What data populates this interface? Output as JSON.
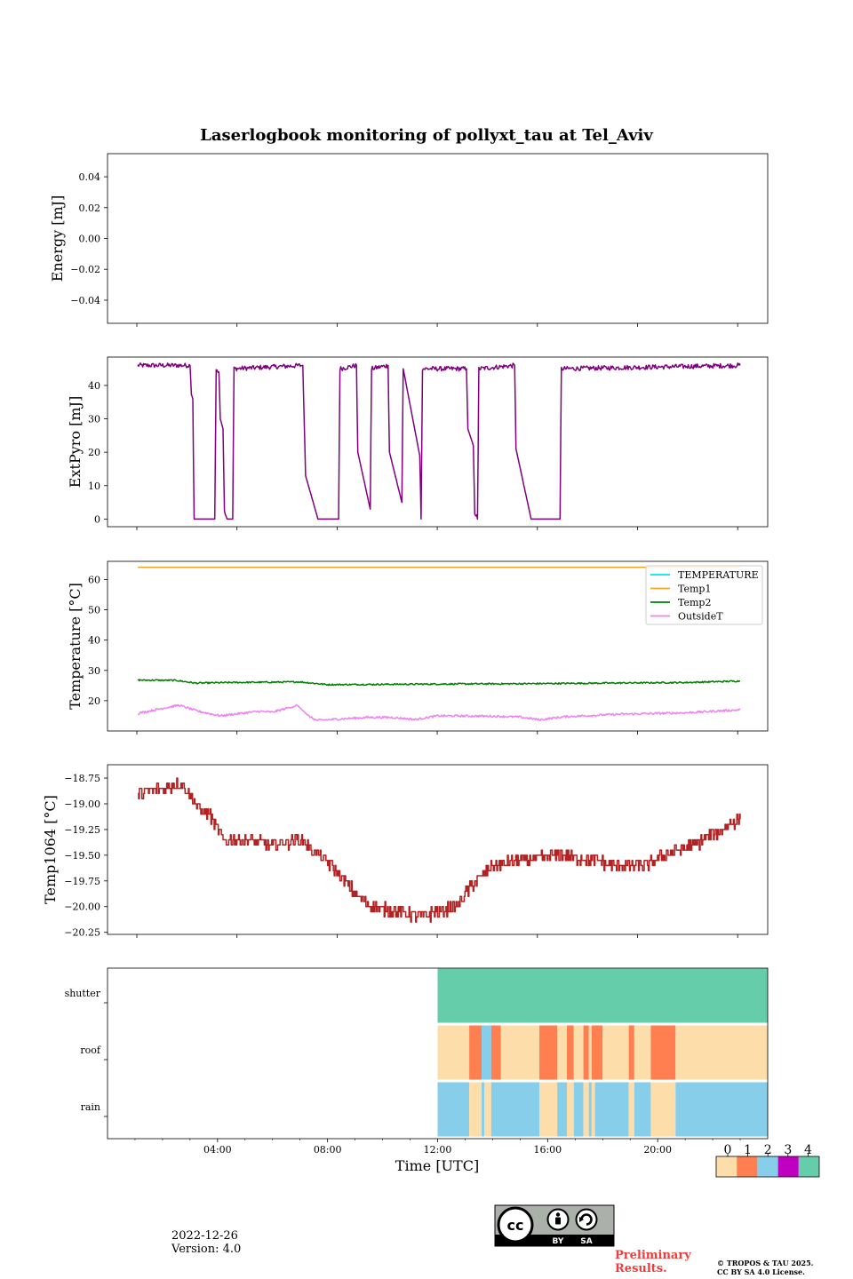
{
  "chart_data": {
    "title": "Laserlogbook monitoring of pollyxt_tau at Tel_Aviv",
    "x_axis": {
      "label": "Time [UTC]",
      "range_hours": [
        0,
        24
      ],
      "ticks": [
        {
          "hour": 4,
          "label": "04:00"
        },
        {
          "hour": 8,
          "label": "08:00"
        },
        {
          "hour": 12,
          "label": "12:00"
        },
        {
          "hour": 16,
          "label": "16:00"
        },
        {
          "hour": 20,
          "label": "20:00"
        }
      ]
    },
    "panels": [
      {
        "id": "energy",
        "type": "line",
        "ylabel": "Energy [mJ]",
        "ylim": [
          -0.055,
          0.055
        ],
        "yticks": [
          {
            "v": 0.04,
            "label": "0.04"
          },
          {
            "v": 0.02,
            "label": "0.02"
          },
          {
            "v": 0.0,
            "label": "0.00"
          },
          {
            "v": -0.02,
            "label": "−0.02"
          },
          {
            "v": -0.04,
            "label": "−0.04"
          }
        ],
        "series": []
      },
      {
        "id": "extpyro",
        "type": "line",
        "ylabel": "ExtPyro [mJ]",
        "ylim": [
          -2.3,
          48.5
        ],
        "yticks": [
          {
            "v": 0,
            "label": "0"
          },
          {
            "v": 10,
            "label": "10"
          },
          {
            "v": 20,
            "label": "20"
          },
          {
            "v": 30,
            "label": "30"
          },
          {
            "v": 40,
            "label": "40"
          }
        ],
        "series": [
          {
            "color": "#800080",
            "noise": 0.7,
            "points": [
              [
                1.1,
                46
              ],
              [
                3.0,
                46
              ],
              [
                3.05,
                38
              ],
              [
                3.1,
                36
              ],
              [
                3.15,
                0
              ],
              [
                3.9,
                0
              ],
              [
                3.95,
                45
              ],
              [
                4.05,
                44
              ],
              [
                4.1,
                30
              ],
              [
                4.2,
                27
              ],
              [
                4.25,
                2
              ],
              [
                4.35,
                0
              ],
              [
                4.55,
                0
              ],
              [
                4.6,
                45
              ],
              [
                7.1,
                46
              ],
              [
                7.2,
                13
              ],
              [
                7.65,
                0
              ],
              [
                8.4,
                0
              ],
              [
                8.45,
                45
              ],
              [
                9.05,
                46
              ],
              [
                9.1,
                20
              ],
              [
                9.55,
                3
              ],
              [
                9.6,
                45
              ],
              [
                10.2,
                46
              ],
              [
                10.25,
                20
              ],
              [
                10.7,
                5
              ],
              [
                10.75,
                45
              ],
              [
                11.35,
                19
              ],
              [
                11.4,
                0
              ],
              [
                11.45,
                45
              ],
              [
                13.05,
                45
              ],
              [
                13.1,
                27
              ],
              [
                13.3,
                22
              ],
              [
                13.35,
                2
              ],
              [
                13.45,
                0
              ],
              [
                13.5,
                45
              ],
              [
                14.8,
                46
              ],
              [
                14.85,
                21
              ],
              [
                15.4,
                0
              ],
              [
                16.45,
                0
              ],
              [
                16.5,
                45
              ],
              [
                23.0,
                46
              ]
            ]
          }
        ]
      },
      {
        "id": "temperature",
        "type": "line",
        "ylabel": "Temperature [°C]",
        "ylim": [
          10,
          66
        ],
        "yticks": [
          {
            "v": 20,
            "label": "20"
          },
          {
            "v": 30,
            "label": "30"
          },
          {
            "v": 40,
            "label": "40"
          },
          {
            "v": 50,
            "label": "50"
          },
          {
            "v": 60,
            "label": "60"
          }
        ],
        "legend_position": "top-right",
        "series": [
          {
            "name": "TEMPERATURE",
            "color": "#00e5ee",
            "noise": 0,
            "points": []
          },
          {
            "name": "Temp1",
            "color": "#f5a623",
            "noise": 0,
            "points": [
              [
                1.1,
                64
              ],
              [
                23.0,
                64
              ]
            ]
          },
          {
            "name": "Temp2",
            "color": "#008000",
            "noise": 0.25,
            "points": [
              [
                1.1,
                26.8
              ],
              [
                2.5,
                26.7
              ],
              [
                3.2,
                25.8
              ],
              [
                4.5,
                26.0
              ],
              [
                7.0,
                26.2
              ],
              [
                8.0,
                25.3
              ],
              [
                10.0,
                25.4
              ],
              [
                12.0,
                25.5
              ],
              [
                15.0,
                25.6
              ],
              [
                18.0,
                25.8
              ],
              [
                21.0,
                26.0
              ],
              [
                23.0,
                26.5
              ]
            ]
          },
          {
            "name": "OutsideT",
            "color": "#ee82ee",
            "noise": 0.35,
            "points": [
              [
                1.1,
                15.8
              ],
              [
                2.0,
                17.5
              ],
              [
                2.6,
                18.5
              ],
              [
                3.3,
                16.5
              ],
              [
                4.1,
                15.0
              ],
              [
                5.5,
                16.5
              ],
              [
                6.0,
                16.2
              ],
              [
                6.9,
                18.5
              ],
              [
                7.3,
                15.0
              ],
              [
                7.6,
                13.5
              ],
              [
                8.5,
                14.0
              ],
              [
                9.5,
                14.5
              ],
              [
                10.3,
                14.5
              ],
              [
                11.2,
                13.8
              ],
              [
                12.0,
                15.0
              ],
              [
                14.0,
                14.9
              ],
              [
                15.0,
                14.6
              ],
              [
                15.7,
                13.7
              ],
              [
                16.6,
                14.7
              ],
              [
                18.5,
                15.5
              ],
              [
                21.0,
                16.0
              ],
              [
                23.0,
                17.0
              ]
            ]
          }
        ]
      },
      {
        "id": "temp1064",
        "type": "step",
        "ylabel": "Temp1064 [°C]",
        "ylim": [
          -20.27,
          -18.62
        ],
        "yticks": [
          {
            "v": -18.75,
            "label": "−18.75"
          },
          {
            "v": -19.0,
            "label": "−19.00"
          },
          {
            "v": -19.25,
            "label": "−19.25"
          },
          {
            "v": -19.5,
            "label": "−19.50"
          },
          {
            "v": -19.75,
            "label": "−19.75"
          },
          {
            "v": -20.0,
            "label": "−20.00"
          },
          {
            "v": -20.25,
            "label": "−20.25"
          }
        ],
        "series": [
          {
            "color": "#b22222",
            "noise": 0.06,
            "points": [
              [
                1.1,
                -18.9
              ],
              [
                2.0,
                -18.85
              ],
              [
                2.7,
                -18.8
              ],
              [
                3.3,
                -19.05
              ],
              [
                3.7,
                -19.1
              ],
              [
                4.2,
                -19.35
              ],
              [
                5.0,
                -19.35
              ],
              [
                6.0,
                -19.4
              ],
              [
                7.0,
                -19.35
              ],
              [
                7.7,
                -19.5
              ],
              [
                8.3,
                -19.65
              ],
              [
                9.1,
                -19.9
              ],
              [
                9.6,
                -20.0
              ],
              [
                10.6,
                -20.05
              ],
              [
                11.5,
                -20.1
              ],
              [
                12.0,
                -20.05
              ],
              [
                12.7,
                -20.0
              ],
              [
                13.2,
                -19.8
              ],
              [
                14.0,
                -19.6
              ],
              [
                15.2,
                -19.55
              ],
              [
                16.5,
                -19.5
              ],
              [
                17.6,
                -19.55
              ],
              [
                18.5,
                -19.6
              ],
              [
                19.6,
                -19.6
              ],
              [
                20.2,
                -19.5
              ],
              [
                21.3,
                -19.4
              ],
              [
                22.0,
                -19.3
              ],
              [
                22.6,
                -19.2
              ],
              [
                23.0,
                -19.15
              ]
            ]
          }
        ]
      },
      {
        "id": "status",
        "type": "heatmap",
        "rows": [
          "shutter",
          "roof",
          "rain"
        ],
        "data_start_hour": 12.0,
        "segments": {
          "shutter": [
            [
              12.0,
              24.0,
              4
            ]
          ],
          "roof": [
            [
              12.0,
              13.15,
              0
            ],
            [
              13.15,
              13.6,
              1
            ],
            [
              13.6,
              13.95,
              2
            ],
            [
              13.95,
              14.3,
              1
            ],
            [
              14.3,
              15.7,
              0
            ],
            [
              15.7,
              16.35,
              1
            ],
            [
              16.35,
              16.7,
              0
            ],
            [
              16.7,
              16.95,
              1
            ],
            [
              16.95,
              17.3,
              0
            ],
            [
              17.3,
              17.5,
              1
            ],
            [
              17.5,
              17.6,
              0
            ],
            [
              17.6,
              18.0,
              1
            ],
            [
              18.0,
              18.95,
              0
            ],
            [
              18.95,
              19.15,
              1
            ],
            [
              19.15,
              19.75,
              0
            ],
            [
              19.75,
              20.65,
              1
            ],
            [
              20.65,
              24.0,
              0
            ]
          ],
          "rain": [
            [
              12.0,
              13.15,
              2
            ],
            [
              13.15,
              13.6,
              0
            ],
            [
              13.6,
              13.7,
              2
            ],
            [
              13.7,
              13.95,
              0
            ],
            [
              13.95,
              15.7,
              2
            ],
            [
              15.7,
              16.35,
              0
            ],
            [
              16.35,
              16.7,
              2
            ],
            [
              16.7,
              16.95,
              0
            ],
            [
              16.95,
              17.3,
              2
            ],
            [
              17.3,
              17.5,
              0
            ],
            [
              17.5,
              17.6,
              2
            ],
            [
              17.6,
              17.72,
              0
            ],
            [
              17.72,
              18.95,
              2
            ],
            [
              18.95,
              19.15,
              0
            ],
            [
              19.15,
              19.75,
              2
            ],
            [
              19.75,
              20.65,
              0
            ],
            [
              20.65,
              24.0,
              2
            ]
          ]
        },
        "colorbar": {
          "labels": [
            "0",
            "1",
            "2",
            "3",
            "4"
          ],
          "colors": [
            "#fddeaa",
            "#ff7f50",
            "#87ceeb",
            "#c000c0",
            "#66cdaa"
          ]
        }
      }
    ]
  },
  "footer": {
    "date": "2022-12-26",
    "version": "Version: 4.0",
    "license_badge": {
      "icon": "cc-by-sa-icon",
      "labels": [
        "BY",
        "SA"
      ]
    },
    "preliminary": "Preliminary Results.",
    "copyright_line1": "© TROPOS & TAU 2025.",
    "copyright_line2": "CC BY SA 4.0 License."
  }
}
